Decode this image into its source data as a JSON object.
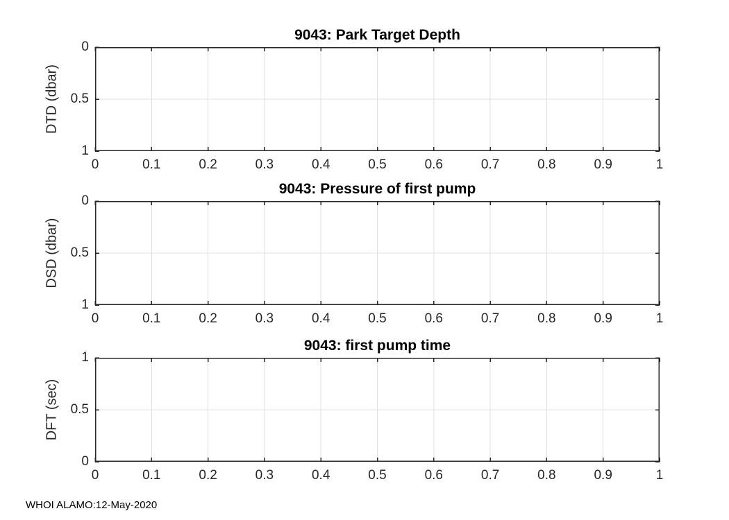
{
  "figure": {
    "background": "#ffffff",
    "footer": {
      "text": "WHOI ALAMO:12-May-2020"
    },
    "style": {
      "axis_color": "#262626",
      "grid_color": "#e0e0e0",
      "title_color": "#000000",
      "tick_label_color": "#262626"
    }
  },
  "chart_data": [
    {
      "type": "line",
      "title": "9043: Park Target Depth",
      "xlabel": "",
      "ylabel": "DTD (dbar)",
      "xlim": [
        0,
        1
      ],
      "ylim": [
        0,
        1
      ],
      "y_axis_reversed": true,
      "grid": true,
      "legend": null,
      "xticks": [
        0,
        0.1,
        0.2,
        0.3,
        0.4,
        0.5,
        0.6,
        0.7,
        0.8,
        0.9,
        1
      ],
      "xtick_labels": [
        "0",
        "0.1",
        "0.2",
        "0.3",
        "0.4",
        "0.5",
        "0.6",
        "0.7",
        "0.8",
        "0.9",
        "1"
      ],
      "yticks": [
        0,
        0.5,
        1
      ],
      "ytick_labels": [
        "0",
        "0.5",
        "1"
      ],
      "series": []
    },
    {
      "type": "line",
      "title": "9043: Pressure of first pump",
      "xlabel": "",
      "ylabel": "DSD (dbar)",
      "xlim": [
        0,
        1
      ],
      "ylim": [
        0,
        1
      ],
      "y_axis_reversed": true,
      "grid": true,
      "legend": null,
      "xticks": [
        0,
        0.1,
        0.2,
        0.3,
        0.4,
        0.5,
        0.6,
        0.7,
        0.8,
        0.9,
        1
      ],
      "xtick_labels": [
        "0",
        "0.1",
        "0.2",
        "0.3",
        "0.4",
        "0.5",
        "0.6",
        "0.7",
        "0.8",
        "0.9",
        "1"
      ],
      "yticks": [
        0,
        0.5,
        1
      ],
      "ytick_labels": [
        "0",
        "0.5",
        "1"
      ],
      "series": []
    },
    {
      "type": "line",
      "title": "9043: first pump time",
      "xlabel": "",
      "ylabel": "DFT (sec)",
      "xlim": [
        0,
        1
      ],
      "ylim": [
        0,
        1
      ],
      "y_axis_reversed": false,
      "grid": true,
      "legend": null,
      "xticks": [
        0,
        0.1,
        0.2,
        0.3,
        0.4,
        0.5,
        0.6,
        0.7,
        0.8,
        0.9,
        1
      ],
      "xtick_labels": [
        "0",
        "0.1",
        "0.2",
        "0.3",
        "0.4",
        "0.5",
        "0.6",
        "0.7",
        "0.8",
        "0.9",
        "1"
      ],
      "yticks": [
        0,
        0.5,
        1
      ],
      "ytick_labels": [
        "0",
        "0.5",
        "1"
      ],
      "series": []
    }
  ]
}
